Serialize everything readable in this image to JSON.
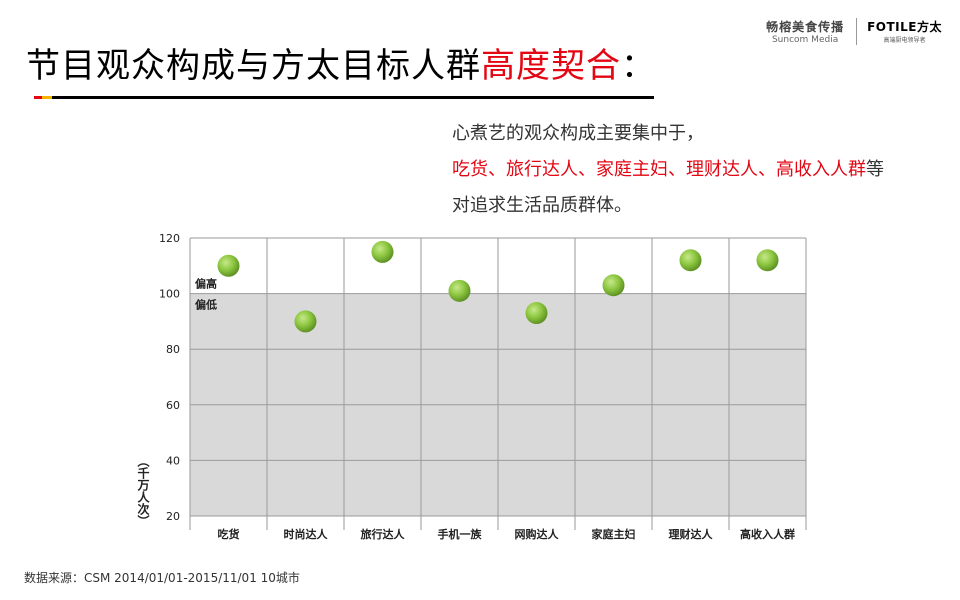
{
  "header": {
    "logo_suncom_cn": "畅榕美食传播",
    "logo_suncom_en": "Suncom Media",
    "logo_fotile": "FOTILE方太",
    "logo_fotile_tagline": "高端厨电领导者"
  },
  "title": {
    "main": "节目观众构成与方太目标人群",
    "accent": "高度契合",
    "suffix": "："
  },
  "description": {
    "line1": "心煮艺的观众构成主要集中于，",
    "line2": "吃货、旅行达人、家庭主妇、理财达人、高收入人群",
    "line2_suffix": "等",
    "line3": "对追求生活品质群体。"
  },
  "chart_data": {
    "type": "scatter",
    "categories": [
      "吃货",
      "时尚达人",
      "旅行达人",
      "手机一族",
      "网购达人",
      "家庭主妇",
      "理财达人",
      "高收入人群"
    ],
    "values": [
      110,
      90,
      115,
      101,
      93,
      103,
      112,
      112
    ],
    "ylabel": "（千万人次）",
    "ylim": [
      20,
      120
    ],
    "yticks": [
      20,
      40,
      60,
      80,
      100,
      120
    ],
    "threshold": 100,
    "threshold_labels": {
      "above": "偏高",
      "below": "偏低"
    },
    "colors": {
      "point": "#8cc63f",
      "below_band": "#d9d9d9",
      "grid": "#9a9a9a"
    }
  },
  "source": "数据来源：CSM 2014/01/01-2015/11/01 10城市"
}
